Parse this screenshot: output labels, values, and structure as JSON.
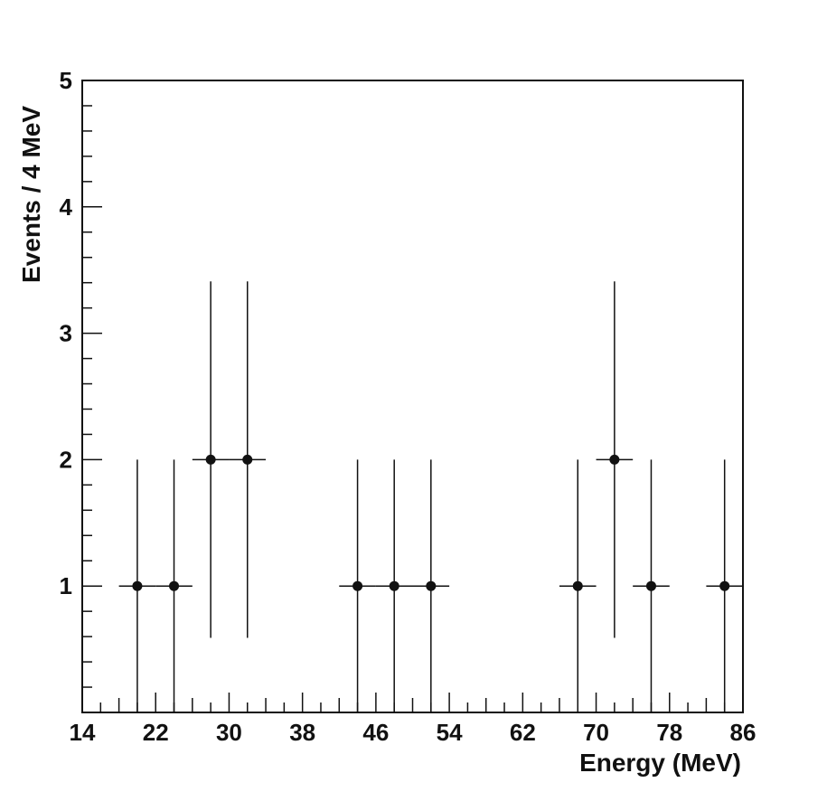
{
  "chart_data": {
    "type": "scatter",
    "title": "",
    "xlabel": "Energy (MeV)",
    "ylabel": "Events / 4 MeV",
    "xlim": [
      14,
      86
    ],
    "ylim": [
      0,
      5
    ],
    "x_ticks": [
      "14",
      "22",
      "30",
      "38",
      "46",
      "54",
      "62",
      "70",
      "78",
      "86"
    ],
    "y_ticks": [
      "1",
      "2",
      "3",
      "4",
      "5"
    ],
    "bin_width": 4,
    "grid": false,
    "legend": "none",
    "series": [
      {
        "x": [
          20,
          24,
          28,
          32,
          44,
          48,
          52,
          68,
          72,
          76,
          84
        ],
        "y": [
          1,
          1,
          2,
          2,
          1,
          1,
          1,
          1,
          2,
          1,
          1
        ],
        "y_err_low": [
          1,
          1,
          1.41,
          1.41,
          1,
          1,
          1,
          1,
          1.41,
          1,
          1
        ],
        "y_err_high": [
          1,
          1,
          1.41,
          1.41,
          1,
          1,
          1,
          1,
          1.41,
          1,
          1
        ]
      }
    ]
  }
}
